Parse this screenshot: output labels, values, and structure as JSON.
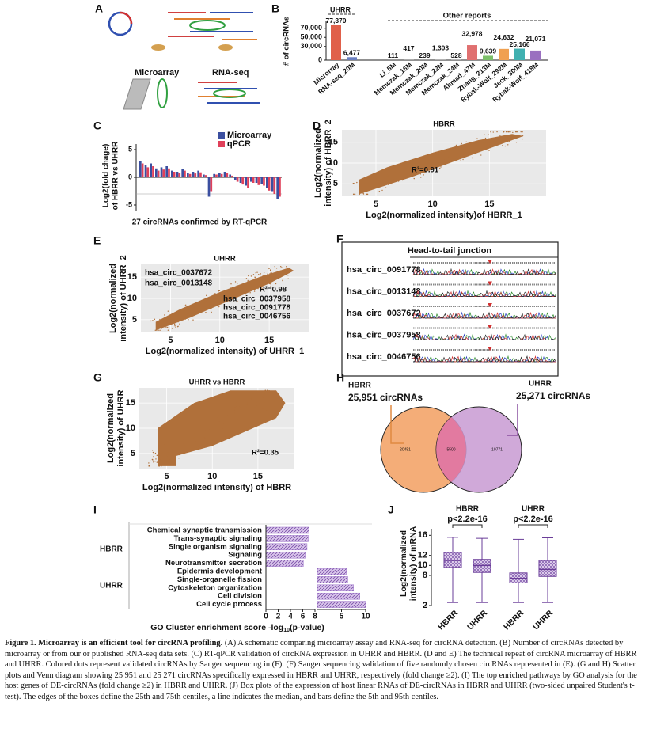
{
  "panels": {
    "A": {
      "label": "A",
      "microarray": "Microarray",
      "rnaseq": "RNA-seq"
    },
    "B": {
      "label": "B",
      "type": "bar",
      "group_title": "UHRR",
      "other_title": "Other reports",
      "ylabel": "# of circRNAs",
      "categories": [
        "Microrray",
        "RNA-seq_20M",
        "Li_5M",
        "Memczak_16M",
        "Memczak_20M",
        "Memczak_22M",
        "Memczak_24M",
        "Ahmad_47M",
        "Zhang_213M",
        "Rybak-Wolf_292M",
        "Jeck_300M",
        "Rybak-Wolf_418M"
      ],
      "values": [
        77370,
        6477,
        111,
        417,
        239,
        1303,
        528,
        32978,
        9639,
        24632,
        25166,
        21071
      ],
      "value_labels": [
        "77,370",
        "6,477",
        "111",
        "417",
        "239",
        "1,303",
        "528",
        "32,978",
        "9,639",
        "24,632",
        "25,166",
        "21,071"
      ],
      "colors": [
        "#e0604a",
        "#6a7fc0",
        "#9a9a9a",
        "#9a9a9a",
        "#9a9a9a",
        "#9a9a9a",
        "#9a9a9a",
        "#e07070",
        "#7cc06a",
        "#f0a050",
        "#40b0b0",
        "#9a70c0"
      ],
      "ylim": [
        0,
        80000
      ],
      "yticks": [
        0,
        {
          "value": 30000,
          "label": "30,000"
        },
        {
          "value": 50000,
          "label": "50,000"
        },
        {
          "value": 70000,
          "label": "70,000"
        }
      ]
    },
    "C": {
      "label": "C",
      "type": "bar",
      "ylabel": [
        "Log2(fold chage)",
        "of HBRR vs UHRR"
      ],
      "xlabel": "27 circRNAs confirmed by RT-qPCR",
      "series": [
        {
          "name": "Microarray",
          "color": "#3b4fa0",
          "values": [
            3,
            2.2,
            2.5,
            1.6,
            1.8,
            2,
            1.2,
            1,
            1.5,
            0.8,
            1,
            1.2,
            0.5,
            -3.5,
            0.6,
            0.8,
            1,
            0.5,
            -0.5,
            -1,
            -1.5,
            -0.8,
            -1,
            -1.2,
            -2,
            -2.5,
            -4
          ]
        },
        {
          "name": "qPCR",
          "color": "#e0405a",
          "values": [
            2.5,
            1.8,
            2,
            1.2,
            1.4,
            1.6,
            1,
            0.8,
            1.2,
            0.6,
            0.7,
            0.9,
            0.4,
            -2.5,
            0.5,
            0.6,
            0.8,
            0.3,
            -0.8,
            -1.3,
            -2,
            -1,
            -1.4,
            -1.5,
            -2.4,
            -3,
            -3.5
          ]
        }
      ],
      "ylim": [
        -6,
        6
      ],
      "yticks": [
        -5,
        0,
        5
      ]
    },
    "D": {
      "label": "D",
      "type": "scatter",
      "title": "HBRR",
      "annotation": "R²=0.91",
      "xlabel": "Log2(normalized intensity)of HBRR_1",
      "ylabel": [
        "Log2(normalized",
        "intensity) of HBRR_2"
      ],
      "xlim": [
        2,
        20
      ],
      "ylim": [
        2,
        18
      ],
      "xticks": [
        5,
        10,
        15
      ],
      "yticks": [
        5,
        10,
        15
      ]
    },
    "E": {
      "label": "E",
      "type": "scatter",
      "title": "UHRR",
      "annotation": "R²=0.98",
      "xlabel": "Log2(normalized intensity) of UHRR_1",
      "ylabel": [
        "Log2(normalized",
        "intensity) of UHRR_2"
      ],
      "xlim": [
        2,
        19
      ],
      "ylim": [
        2,
        18
      ],
      "xticks": [
        5,
        10,
        15
      ],
      "yticks": [
        5,
        10,
        15
      ],
      "points": [
        "hsa_circ_0037672",
        "hsa_circ_0013148",
        "hsa_circ_0037958",
        "hsa_circ_0091778",
        "hsa_circ_0046756"
      ]
    },
    "F": {
      "label": "F",
      "title": "Head-to-tail junction",
      "rows": [
        "hsa_circ_0091778",
        "hsa_circ_0013148",
        "hsa_circ_0037672",
        "hsa_circ_0037958",
        "hsa_circ_0046756"
      ]
    },
    "G": {
      "label": "G",
      "type": "scatter",
      "title": "UHRR vs HBRR",
      "annotation": "R²=0.35",
      "xlabel": "Log2(normalized intensity) of HBRR",
      "ylabel": [
        "Log2(normalized",
        "intensity) of UHRR"
      ],
      "xlim": [
        2,
        19
      ],
      "ylim": [
        2,
        18
      ],
      "xticks": [
        5,
        10,
        15
      ],
      "yticks": [
        5,
        10,
        15
      ]
    },
    "H": {
      "label": "H",
      "left": {
        "name": "HBRR",
        "count": "25,951 circRNAs",
        "only": "20451"
      },
      "right": {
        "name": "UHRR",
        "count": "25,271 circRNAs",
        "only": "19771"
      },
      "both": "5500"
    },
    "I": {
      "label": "I",
      "type": "bar",
      "color": "#9a70c8",
      "groups": [
        {
          "name": "HBRR",
          "terms": [
            "Chemical synaptic transmission",
            "Trans-synaptic signaling",
            "Single organism signaling",
            "Signaling",
            "Neurotransmitter secretion"
          ],
          "values": [
            7,
            6.9,
            6.7,
            6.4,
            6.1
          ]
        },
        {
          "name": "UHRR",
          "terms": [
            "Epidermis development",
            "Single-organelle fission",
            "Cytoskeleton organization",
            "Cell division",
            "Cell cycle process"
          ],
          "values": [
            6,
            6.3,
            7.5,
            8.8,
            10
          ]
        }
      ],
      "xlim": [
        0,
        8
      ],
      "xticks": [
        0,
        2,
        4,
        6,
        8
      ],
      "x2lim": [
        0,
        10
      ],
      "x2ticks": [
        5,
        10
      ],
      "xlabel": "GO Cluster enrichment score -log",
      "xlabel_sub": "10",
      "xlabel_end": "(p-value)"
    },
    "J": {
      "label": "J",
      "type": "box",
      "ylabel": [
        "Log2(normalized",
        "intensity) of mRNA"
      ],
      "groups": [
        {
          "name": "HBRR",
          "p": "p<2.2e-16"
        },
        {
          "name": "UHRR",
          "p": "p<2.2e-16"
        }
      ],
      "categories": [
        "HBRR",
        "UHRR",
        "HBRR",
        "UHRR"
      ],
      "boxes": [
        {
          "low": 2.6,
          "q1": 9.6,
          "median": 11,
          "q3": 12.6,
          "high": 15.6
        },
        {
          "low": 2.6,
          "q1": 8.6,
          "median": 10,
          "q3": 11.2,
          "high": 15.4
        },
        {
          "low": 2.6,
          "q1": 6.5,
          "median": 7.4,
          "q3": 8.5,
          "high": 15.2
        },
        {
          "low": 2.6,
          "q1": 7.8,
          "median": 9.2,
          "q3": 11,
          "high": 15.5
        }
      ],
      "ylim": [
        2,
        17
      ],
      "yticks": [
        2,
        8,
        10,
        12,
        16
      ]
    }
  },
  "caption": {
    "title": "Figure 1. Microarray is an efficient tool for circRNA profiling.",
    "text": "(A) A schematic comparing microarray assay and RNA-seq for circRNA detection. (B) Number of circRNAs detected by microarray or from our or published RNA-seq data sets. (C) RT-qPCR validation of circRNA expression in UHRR and HBRR. (D and E) The technical repeat of circRNA microarray of HBRR and UHRR. Colored dots represent validated circRNAs by Sanger sequencing in (F). (F) Sanger sequencing validation of five randomly chosen circRNAs represented in (E). (G and H) Scatter plots and Venn diagram showing 25 951 and 25 271 circRNAs specifically expressed in HBRR and UHRR, respectively (fold change ≥2). (I) The top enriched pathways by GO analysis for the host genes of DE-circRNAs (fold change ≥2) in HBRR and UHRR. (J) Box plots of the expression of host linear RNAs of DE-circRNAs in HBRR and UHRR (two-sided unpaired Student's t-test). The edges of the boxes define the 25th and 75th centiles, a line indicates the median, and bars define the 5th and 95th centiles."
  }
}
